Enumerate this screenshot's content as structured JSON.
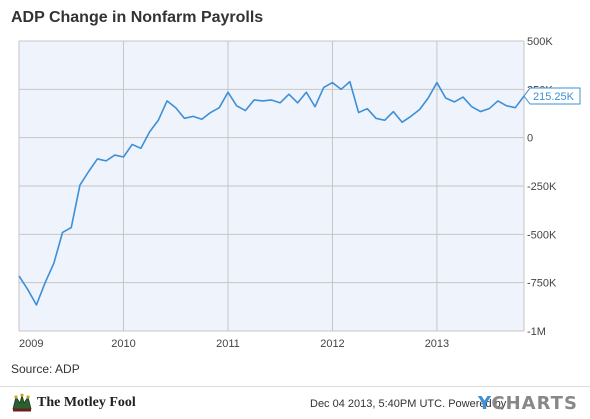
{
  "header": {
    "title": "ADP Change in Nonfarm Payrolls"
  },
  "footer": {
    "source": "Source: ADP",
    "brand_name": "The Motley Fool",
    "brand_logo_icon": "jester-hat-icon",
    "timestamp": "Dec 04 2013, 5:40PM UTC.",
    "powered_by": "Powered by",
    "ycharts_y": "Y",
    "ycharts_rest": "CHARTS"
  },
  "colors": {
    "line": "#3d8fd6",
    "plot_background": "#eef3fc",
    "grid": "#c6c6c6"
  },
  "chart_data": {
    "type": "line",
    "title": "ADP Change in Nonfarm Payrolls",
    "xlabel": "",
    "ylabel": "",
    "grid": true,
    "y_axis_side": "right",
    "ylim": [
      -1000000,
      500000
    ],
    "yticks": [
      500000,
      250000,
      0,
      -250000,
      -500000,
      -750000,
      -1000000
    ],
    "ytick_labels": [
      "500K",
      "250K",
      "0",
      "-250K",
      "-500K",
      "-750K",
      "-1M"
    ],
    "xlim": [
      "2009-01",
      "2013-11"
    ],
    "xtick_labels": [
      "2009",
      "2010",
      "2011",
      "2012",
      "2013"
    ],
    "last_value_label": "215.25K",
    "series": [
      {
        "x": [
          "2009-01",
          "2009-02",
          "2009-03",
          "2009-04",
          "2009-05",
          "2009-06",
          "2009-07",
          "2009-08",
          "2009-09",
          "2009-10",
          "2009-11",
          "2009-12",
          "2010-01",
          "2010-02",
          "2010-03",
          "2010-04",
          "2010-05",
          "2010-06",
          "2010-07",
          "2010-08",
          "2010-09",
          "2010-10",
          "2010-11",
          "2010-12",
          "2011-01",
          "2011-02",
          "2011-03",
          "2011-04",
          "2011-05",
          "2011-06",
          "2011-07",
          "2011-08",
          "2011-09",
          "2011-10",
          "2011-11",
          "2011-12",
          "2012-01",
          "2012-02",
          "2012-03",
          "2012-04",
          "2012-05",
          "2012-06",
          "2012-07",
          "2012-08",
          "2012-09",
          "2012-10",
          "2012-11",
          "2012-12",
          "2013-01",
          "2013-02",
          "2013-03",
          "2013-04",
          "2013-05",
          "2013-06",
          "2013-07",
          "2013-08",
          "2013-09",
          "2013-10",
          "2013-11"
        ],
        "y": [
          -715000,
          -785000,
          -865000,
          -750000,
          -650000,
          -490000,
          -465000,
          -245000,
          -175000,
          -110000,
          -120000,
          -90000,
          -100000,
          -35000,
          -55000,
          30000,
          90000,
          190000,
          155000,
          100000,
          110000,
          95000,
          130000,
          155000,
          235000,
          165000,
          140000,
          195000,
          190000,
          195000,
          180000,
          225000,
          180000,
          235000,
          160000,
          260000,
          285000,
          250000,
          290000,
          130000,
          150000,
          100000,
          90000,
          135000,
          80000,
          110000,
          145000,
          205000,
          285000,
          205000,
          185000,
          210000,
          160000,
          135000,
          150000,
          190000,
          165000,
          155000,
          215250
        ]
      }
    ]
  }
}
